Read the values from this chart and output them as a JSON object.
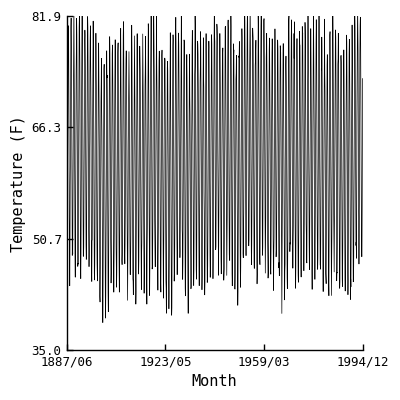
{
  "title": "",
  "xlabel": "Month",
  "ylabel": "Temperature (F)",
  "xlim_start_year": 1887,
  "xlim_start_month": 6,
  "xlim_end_year": 1994,
  "xlim_end_month": 12,
  "yticks": [
    35.0,
    50.7,
    66.3,
    81.9
  ],
  "xtick_labels": [
    "1887/06",
    "1923/05",
    "1959/03",
    "1994/12"
  ],
  "xtick_years": [
    1887,
    1923,
    1959,
    1994
  ],
  "xtick_months": [
    6,
    5,
    3,
    12
  ],
  "line_color": "#000000",
  "line_width": 0.5,
  "background_color": "#ffffff",
  "mean_temp": 63.0,
  "amplitude": 17.5,
  "interannual_std": 3.5,
  "noise_std": 1.5,
  "trend_start": 62.5,
  "trend_end": 64.5,
  "figsize": [
    4.0,
    4.0
  ],
  "dpi": 100
}
